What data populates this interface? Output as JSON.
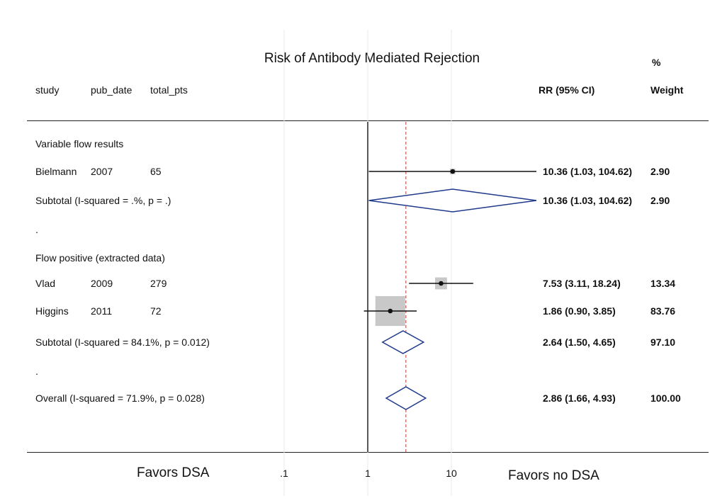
{
  "chart_data": {
    "type": "forest",
    "title": "Risk of Antibody Mediated Rejection",
    "header": {
      "study": "study",
      "pub_date": "pub_date",
      "total_pts": "total_pts",
      "effect": "RR (95% CI)",
      "weight_line1": "%",
      "weight_line2": "Weight"
    },
    "x_scale": "log",
    "x_ticks": [
      ".1",
      "1",
      "10"
    ],
    "x_tick_values": [
      0.1,
      1,
      10
    ],
    "null_line": 1,
    "overall_line": 2.86,
    "favors_left": "Favors DSA",
    "favors_right": "Favors no DSA",
    "rows": [
      {
        "kind": "group",
        "label": "Variable flow results"
      },
      {
        "kind": "study",
        "study": "Bielmann",
        "pub_date": "2007",
        "total_pts": "65",
        "rr": 10.36,
        "lo": 1.03,
        "hi": 104.62,
        "ci": "10.36 (1.03, 104.62)",
        "weight": "2.90",
        "weight_value": 2.9
      },
      {
        "kind": "subtotal",
        "label": "Subtotal  (I-squared = .%, p = .)",
        "rr": 10.36,
        "lo": 1.03,
        "hi": 104.62,
        "ci": "10.36 (1.03, 104.62)",
        "weight": "2.90"
      },
      {
        "kind": "spacer",
        "label": "."
      },
      {
        "kind": "group",
        "label": "Flow positive (extracted data)"
      },
      {
        "kind": "study",
        "study": "Vlad",
        "pub_date": "2009",
        "total_pts": "279",
        "rr": 7.53,
        "lo": 3.11,
        "hi": 18.24,
        "ci": "7.53 (3.11, 18.24)",
        "weight": "13.34",
        "weight_value": 13.34
      },
      {
        "kind": "study",
        "study": "Higgins",
        "pub_date": "2011",
        "total_pts": "72",
        "rr": 1.86,
        "lo": 0.9,
        "hi": 3.85,
        "ci": "1.86 (0.90, 3.85)",
        "weight": "83.76",
        "weight_value": 83.76
      },
      {
        "kind": "subtotal",
        "label": "Subtotal  (I-squared = 84.1%, p = 0.012)",
        "rr": 2.64,
        "lo": 1.5,
        "hi": 4.65,
        "ci": "2.64 (1.50, 4.65)",
        "weight": "97.10"
      },
      {
        "kind": "spacer",
        "label": "."
      },
      {
        "kind": "overall",
        "label": "Overall  (I-squared = 71.9%, p = 0.028)",
        "rr": 2.86,
        "lo": 1.66,
        "hi": 4.93,
        "ci": "2.86 (1.66, 4.93)",
        "weight": "100.00"
      }
    ]
  }
}
